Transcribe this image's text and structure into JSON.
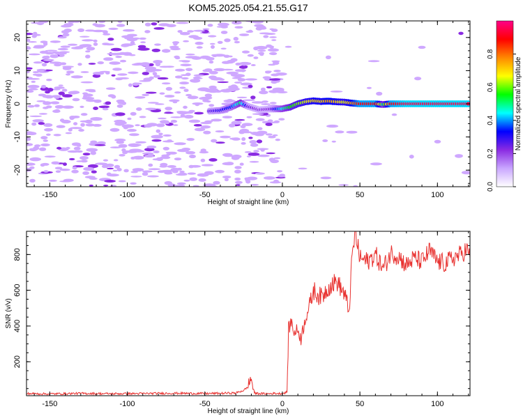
{
  "chart_data": [
    {
      "type": "heatmap",
      "title": "KOM5.2025.054.21.55.G17",
      "xlabel": "Height of straight line (km)",
      "ylabel": "Frequency (Hz)",
      "xlim": [
        -165,
        121
      ],
      "ylim": [
        -25,
        25
      ],
      "xticks": [
        -150,
        -100,
        -50,
        0,
        50,
        100
      ],
      "yticks": [
        -20,
        -10,
        0,
        10,
        20
      ],
      "colorbar": {
        "label": "Normalized spectral amplitude",
        "range": [
          0,
          1
        ],
        "ticks": [
          0.0,
          0.2,
          0.4,
          0.6,
          0.8
        ],
        "colors": [
          "#ffffff",
          "#c9a6ff",
          "#8a2be2",
          "#0000ff",
          "#00ffff",
          "#00ff00",
          "#ffff00",
          "#ff8800",
          "#ff0000",
          "#ff0088"
        ]
      },
      "ridge": [
        {
          "x": -47,
          "y": -2.2,
          "amp": 0.25
        },
        {
          "x": -40,
          "y": -2.0,
          "amp": 0.3
        },
        {
          "x": -33,
          "y": -1.0,
          "amp": 0.35
        },
        {
          "x": -27,
          "y": 0.3,
          "amp": 0.5
        },
        {
          "x": -22,
          "y": -0.8,
          "amp": 0.25
        },
        {
          "x": -15,
          "y": -1.8,
          "amp": 0.2
        },
        {
          "x": -8,
          "y": -1.6,
          "amp": 0.22
        },
        {
          "x": 0,
          "y": -1.5,
          "amp": 0.45
        },
        {
          "x": 5,
          "y": -1.0,
          "amp": 0.55
        },
        {
          "x": 10,
          "y": 0.0,
          "amp": 0.6
        },
        {
          "x": 15,
          "y": 0.6,
          "amp": 0.65
        },
        {
          "x": 20,
          "y": 0.9,
          "amp": 0.7
        },
        {
          "x": 25,
          "y": 0.7,
          "amp": 0.7
        },
        {
          "x": 30,
          "y": 0.8,
          "amp": 0.75
        },
        {
          "x": 35,
          "y": 0.6,
          "amp": 0.7
        },
        {
          "x": 40,
          "y": 0.5,
          "amp": 0.65
        },
        {
          "x": 45,
          "y": 0.2,
          "amp": 0.75
        },
        {
          "x": 50,
          "y": 0.0,
          "amp": 0.9
        },
        {
          "x": 60,
          "y": 0.0,
          "amp": 0.9
        },
        {
          "x": 65,
          "y": -0.2,
          "amp": 0.5
        },
        {
          "x": 70,
          "y": 0.0,
          "amp": 0.9
        },
        {
          "x": 80,
          "y": 0.0,
          "amp": 0.95
        },
        {
          "x": 90,
          "y": 0.0,
          "amp": 0.95
        },
        {
          "x": 100,
          "y": 0.0,
          "amp": 0.95
        },
        {
          "x": 110,
          "y": 0.0,
          "amp": 0.95
        },
        {
          "x": 121,
          "y": 0.0,
          "amp": 0.95
        }
      ],
      "grid": false
    },
    {
      "type": "line",
      "xlabel": "Height of straight line (km)",
      "ylabel": "SNR (v/v)",
      "xlim": [
        -165,
        121
      ],
      "ylim": [
        10,
        930
      ],
      "xticks": [
        -150,
        -100,
        -50,
        0,
        50,
        100
      ],
      "yticks": [
        200,
        400,
        600,
        800
      ],
      "series": [
        {
          "color": "#e8312f",
          "x": [
            -165,
            -150,
            -130,
            -110,
            -90,
            -70,
            -50,
            -30,
            -25,
            -22,
            -21,
            -20,
            -19,
            -18,
            -15,
            -10,
            -5,
            0,
            3,
            4,
            5,
            6,
            8,
            10,
            12,
            15,
            18,
            20,
            25,
            30,
            35,
            40,
            43,
            45,
            47,
            50,
            55,
            60,
            65,
            70,
            75,
            80,
            85,
            90,
            95,
            100,
            105,
            110,
            115,
            119,
            121
          ],
          "y": [
            22,
            20,
            23,
            21,
            22,
            24,
            22,
            25,
            40,
            60,
            95,
            105,
            60,
            25,
            22,
            21,
            23,
            22,
            30,
            380,
            410,
            420,
            360,
            380,
            330,
            450,
            520,
            600,
            560,
            620,
            650,
            580,
            480,
            790,
            920,
            780,
            760,
            800,
            720,
            810,
            790,
            740,
            780,
            760,
            820,
            760,
            750,
            780,
            800,
            830,
            780
          ]
        }
      ],
      "grid": false
    }
  ]
}
